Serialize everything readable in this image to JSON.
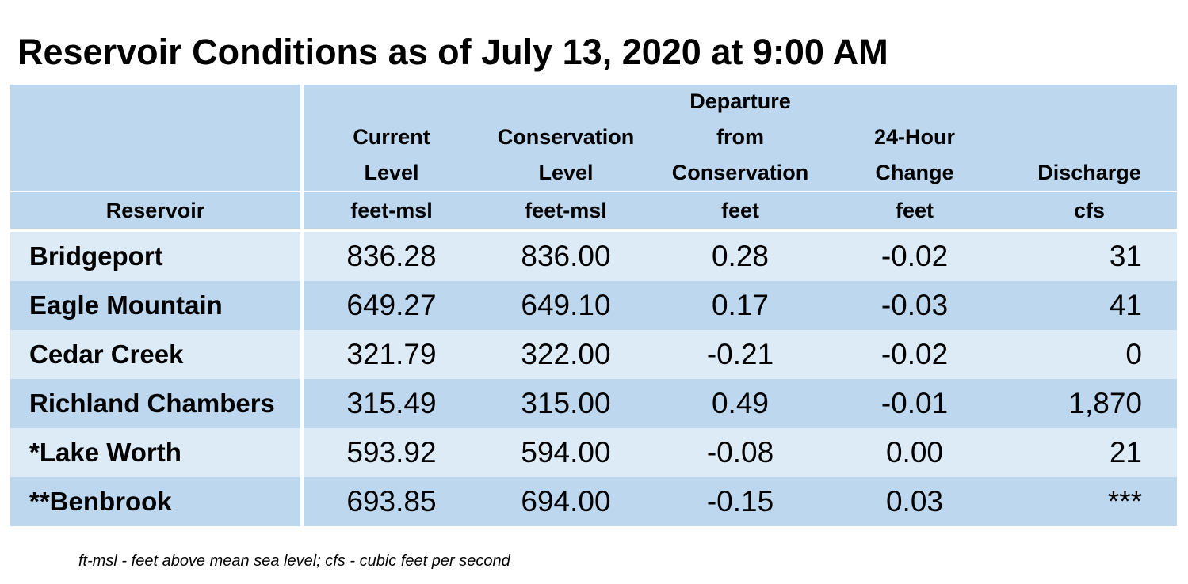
{
  "title": "Reservoir Conditions as of July 13, 2020 at 9:00 AM",
  "columns": [
    {
      "label_lines": [
        "",
        "",
        "Reservoir"
      ],
      "unit": ""
    },
    {
      "label_lines": [
        "Current",
        "Level"
      ],
      "unit": "feet-msl"
    },
    {
      "label_lines": [
        "Conservation",
        "Level"
      ],
      "unit": "feet-msl"
    },
    {
      "label_lines": [
        "Departure",
        "from",
        "Conservation"
      ],
      "unit": "feet"
    },
    {
      "label_lines": [
        "24-Hour",
        "Change"
      ],
      "unit": "feet"
    },
    {
      "label_lines": [
        "Discharge"
      ],
      "unit": "cfs"
    }
  ],
  "rows": [
    {
      "reservoir": "Bridgeport",
      "current": "836.28",
      "conservation": "836.00",
      "departure": "0.28",
      "change": "-0.02",
      "discharge": "31"
    },
    {
      "reservoir": "Eagle Mountain",
      "current": "649.27",
      "conservation": "649.10",
      "departure": "0.17",
      "change": "-0.03",
      "discharge": "41"
    },
    {
      "reservoir": "Cedar Creek",
      "current": "321.79",
      "conservation": "322.00",
      "departure": "-0.21",
      "change": "-0.02",
      "discharge": "0"
    },
    {
      "reservoir": "Richland Chambers",
      "current": "315.49",
      "conservation": "315.00",
      "departure": "0.49",
      "change": "-0.01",
      "discharge": "1,870"
    },
    {
      "reservoir": "*Lake Worth",
      "current": "593.92",
      "conservation": "594.00",
      "departure": "-0.08",
      "change": "0.00",
      "discharge": "21"
    },
    {
      "reservoir": "**Benbrook",
      "current": "693.85",
      "conservation": "694.00",
      "departure": "-0.15",
      "change": "0.03",
      "discharge": "***"
    }
  ],
  "footnote": "ft-msl - feet above mean sea level; cfs - cubic feet per second",
  "colors": {
    "header_bg": "#bdd7ee",
    "row_light": "#ddebf7",
    "row_dark": "#bdd7ee"
  }
}
